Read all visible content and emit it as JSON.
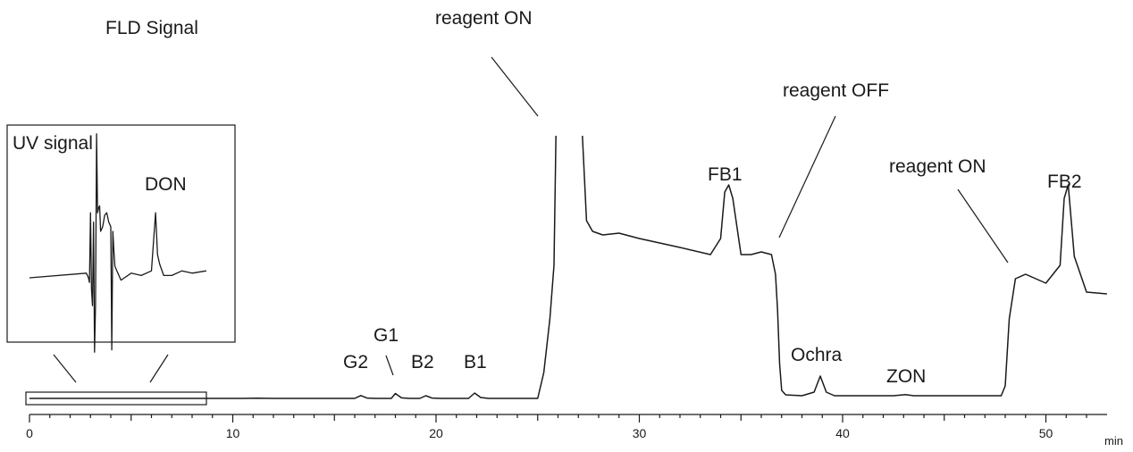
{
  "chart_data": {
    "type": "line",
    "title": "FLD Signal",
    "xlabel": "",
    "x_unit": "min",
    "ylabel": "",
    "xlim": [
      0,
      53
    ],
    "x_ticks": [
      0,
      10,
      20,
      30,
      40,
      50
    ],
    "grid": false,
    "series": [
      {
        "name": "FLD Signal",
        "x": [
          0,
          5,
          9,
          10.5,
          11.2,
          12,
          16,
          16.3,
          16.6,
          17,
          17.8,
          18.0,
          18.3,
          18.7,
          19.2,
          19.5,
          19.8,
          20.2,
          21.6,
          21.9,
          22.2,
          22.6,
          25.0,
          25.3,
          25.6,
          25.8,
          25.9,
          27.2,
          27.4,
          27.7,
          28.2,
          29,
          30,
          32,
          33.5,
          34.0,
          34.2,
          34.4,
          34.6,
          35.0,
          35.5,
          36.0,
          36.5,
          36.7,
          36.8,
          36.9,
          37.0,
          37.2,
          38.0,
          38.6,
          38.9,
          39.2,
          39.6,
          42.5,
          43.1,
          43.5,
          44.5,
          47.8,
          48.0,
          48.2,
          48.5,
          49,
          50,
          50.7,
          50.9,
          51.1,
          51.4,
          52,
          53
        ],
        "y": [
          1.0,
          1.0,
          1.0,
          1.0,
          1.2,
          1.0,
          1.0,
          4.2,
          1.4,
          1.0,
          1.0,
          6.5,
          1.6,
          1.0,
          1.0,
          4.0,
          1.4,
          1.0,
          1.0,
          7.0,
          2.0,
          1.0,
          1.0,
          30,
          90,
          150,
          300,
          300,
          200,
          188,
          184,
          186,
          180,
          170,
          162,
          180,
          232,
          240,
          225,
          162,
          162,
          165,
          162,
          140,
          100,
          40,
          10,
          5,
          4,
          8,
          26,
          8,
          4,
          4,
          5.2,
          4,
          4,
          4,
          15,
          90,
          135,
          140,
          130,
          150,
          225,
          240,
          160,
          120,
          118
        ],
        "stroke": "#1a1a1a"
      }
    ],
    "inset": {
      "label": "UV signal",
      "x_range": [
        0,
        8.7
      ],
      "series": {
        "name": "UV signal",
        "x": [
          0,
          2.8,
          2.9,
          2.95,
          3.0,
          3.05,
          3.1,
          3.15,
          3.2,
          3.25,
          3.3,
          3.35,
          3.4,
          3.45,
          3.5,
          3.6,
          3.7,
          3.8,
          3.9,
          4.0,
          4.05,
          4.1,
          4.15,
          4.2,
          4.3,
          4.5,
          5.0,
          5.5,
          6.0,
          6.2,
          6.3,
          6.4,
          6.6,
          7.0,
          7.5,
          8.0,
          8.7
        ],
        "y": [
          0,
          0.2,
          0,
          -0.2,
          2.8,
          -0.5,
          -1.2,
          2.4,
          -3.2,
          -1.2,
          6.2,
          2.8,
          3.0,
          3.1,
          2.0,
          2.2,
          2.7,
          2.8,
          2.4,
          2.2,
          -3.1,
          2.0,
          1.2,
          0.5,
          0.3,
          -0.1,
          0.2,
          0.1,
          0.3,
          2.8,
          1.0,
          0.6,
          0.1,
          0.1,
          0.3,
          0.2,
          0.3
        ]
      }
    },
    "annotations": [
      {
        "text": "reagent ON",
        "x": 25.6
      },
      {
        "text": "reagent OFF",
        "x": 36.9
      },
      {
        "text": "reagent ON",
        "x": 48.1
      },
      {
        "text": "G2",
        "x": 16.3
      },
      {
        "text": "G1",
        "x": 18.0
      },
      {
        "text": "B2",
        "x": 19.5
      },
      {
        "text": "B1",
        "x": 21.9
      },
      {
        "text": "FB1",
        "x": 34.4
      },
      {
        "text": "Ochra",
        "x": 38.9
      },
      {
        "text": "ZON",
        "x": 43.1
      },
      {
        "text": "FB2",
        "x": 51.0
      },
      {
        "text": "DON",
        "x": 6.3
      }
    ]
  }
}
